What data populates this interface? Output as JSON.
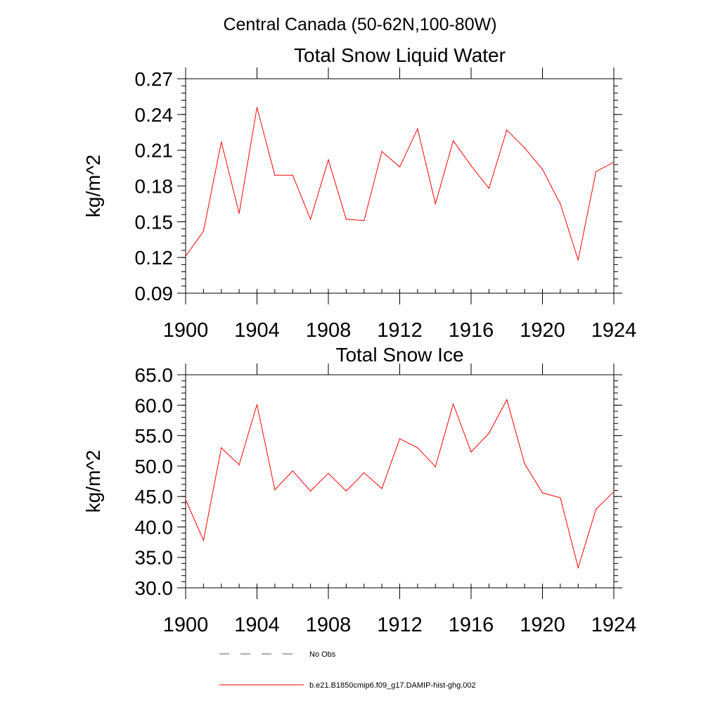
{
  "figure_title": "Central Canada (50-62N,100-80W)",
  "colors": {
    "series": "#ff0000",
    "axes": "#000000",
    "no_obs": "#555577"
  },
  "chart_data": [
    {
      "type": "line",
      "title": "Total Snow Liquid Water",
      "ylabel": "kg/m^2",
      "xlabel": "",
      "xlim": [
        1900,
        1924
      ],
      "ylim": [
        0.09,
        0.27
      ],
      "xticks": [
        1900,
        1904,
        1908,
        1912,
        1916,
        1920,
        1924
      ],
      "xtick_labels": [
        "1900",
        "1904",
        "1908",
        "1912",
        "1916",
        "1920",
        "1924"
      ],
      "yticks": [
        0.09,
        0.12,
        0.15,
        0.18,
        0.21,
        0.24,
        0.27
      ],
      "ytick_labels": [
        "0.09",
        "0.12",
        "0.15",
        "0.18",
        "0.21",
        "0.24",
        "0.27"
      ],
      "y_minor_step": 0.006,
      "x_minor_step": 1,
      "grid": false,
      "series": [
        {
          "name": "b.e21.B1850cmip6.f09_g17.DAMIP-hist-ghg.002",
          "x": [
            1900,
            1901,
            1902,
            1903,
            1904,
            1905,
            1906,
            1907,
            1908,
            1909,
            1910,
            1911,
            1912,
            1913,
            1914,
            1915,
            1916,
            1917,
            1918,
            1919,
            1920,
            1921,
            1922,
            1923,
            1924
          ],
          "y": [
            0.121,
            0.142,
            0.217,
            0.157,
            0.246,
            0.189,
            0.189,
            0.152,
            0.202,
            0.152,
            0.151,
            0.209,
            0.196,
            0.228,
            0.165,
            0.218,
            0.197,
            0.178,
            0.227,
            0.212,
            0.194,
            0.165,
            0.118,
            0.192,
            0.2
          ]
        }
      ]
    },
    {
      "type": "line",
      "title": "Total Snow Ice",
      "ylabel": "kg/m^2",
      "xlabel": "",
      "xlim": [
        1900,
        1924
      ],
      "ylim": [
        30,
        65
      ],
      "xticks": [
        1900,
        1904,
        1908,
        1912,
        1916,
        1920,
        1924
      ],
      "xtick_labels": [
        "1900",
        "1904",
        "1908",
        "1912",
        "1916",
        "1920",
        "1924"
      ],
      "yticks": [
        30,
        35,
        40,
        45,
        50,
        55,
        60,
        65
      ],
      "ytick_labels": [
        "30.0",
        "35.0",
        "40.0",
        "45.0",
        "50.0",
        "55.0",
        "60.0",
        "65.0"
      ],
      "y_minor_step": 1,
      "x_minor_step": 1,
      "grid": false,
      "series": [
        {
          "name": "b.e21.B1850cmip6.f09_g17.DAMIP-hist-ghg.002",
          "x": [
            1900,
            1901,
            1902,
            1903,
            1904,
            1905,
            1906,
            1907,
            1908,
            1909,
            1910,
            1911,
            1912,
            1913,
            1914,
            1915,
            1916,
            1917,
            1918,
            1919,
            1920,
            1921,
            1922,
            1923,
            1924
          ],
          "y": [
            44.5,
            37.8,
            53.0,
            50.2,
            60.1,
            46.1,
            49.2,
            45.9,
            48.8,
            45.9,
            48.9,
            46.3,
            54.5,
            53.0,
            49.9,
            60.2,
            52.3,
            55.4,
            60.9,
            50.4,
            45.6,
            44.8,
            33.3,
            42.9,
            45.8
          ]
        }
      ]
    }
  ],
  "legend": {
    "placement": "bottom",
    "items": [
      {
        "label": "No Obs",
        "style": "dashed"
      },
      {
        "label": "b.e21.B1850cmip6.f09_g17.DAMIP-hist-ghg.002",
        "style": "solid"
      }
    ]
  }
}
